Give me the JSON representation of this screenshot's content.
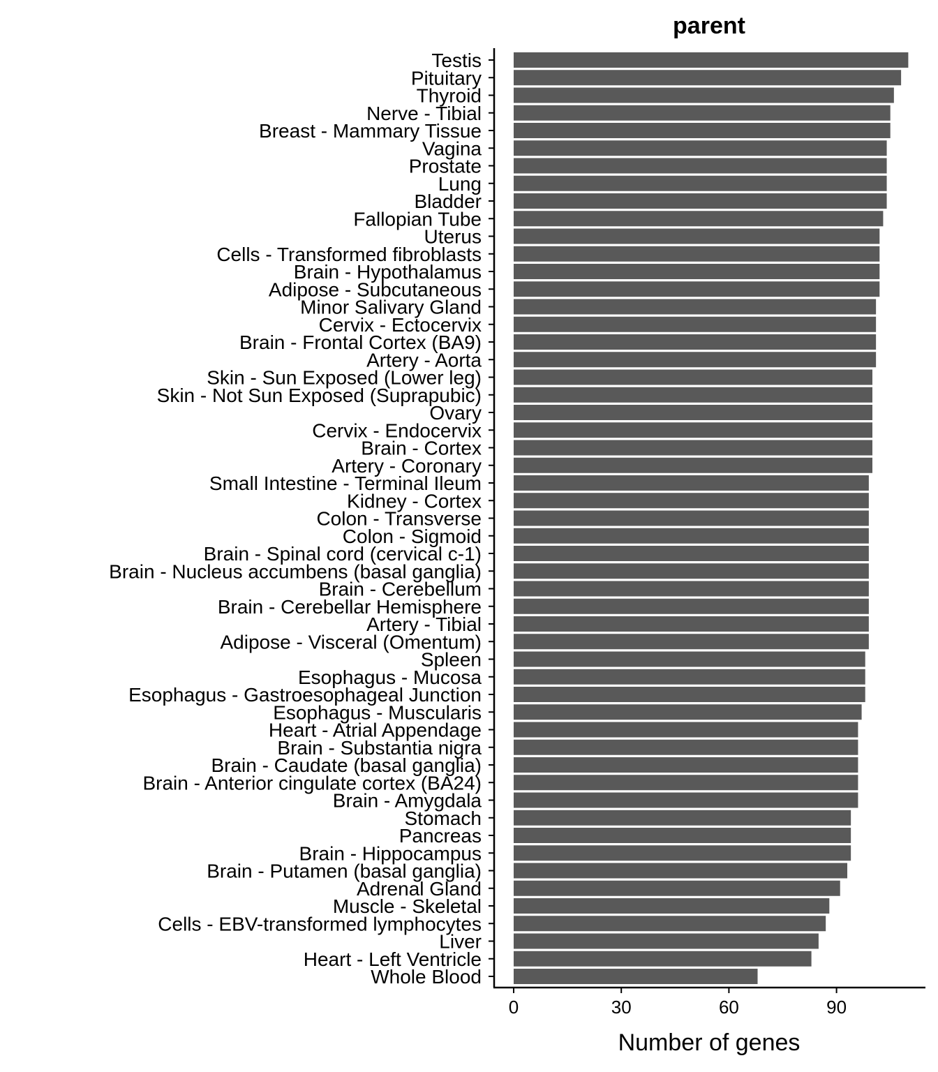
{
  "chart_data": {
    "type": "bar",
    "orientation": "horizontal",
    "title": "parent",
    "xlabel": "Number of genes",
    "ylabel": "",
    "xlim": [
      0,
      110
    ],
    "xticks": [
      0,
      30,
      60,
      90
    ],
    "grid": false,
    "bar_color": "#595959",
    "categories": [
      "Testis",
      "Pituitary",
      "Thyroid",
      "Nerve - Tibial",
      "Breast - Mammary Tissue",
      "Vagina",
      "Prostate",
      "Lung",
      "Bladder",
      "Fallopian Tube",
      "Uterus",
      "Cells - Transformed fibroblasts",
      "Brain - Hypothalamus",
      "Adipose - Subcutaneous",
      "Minor Salivary Gland",
      "Cervix - Ectocervix",
      "Brain - Frontal Cortex (BA9)",
      "Artery - Aorta",
      "Skin - Sun Exposed (Lower leg)",
      "Skin - Not Sun Exposed (Suprapubic)",
      "Ovary",
      "Cervix - Endocervix",
      "Brain - Cortex",
      "Artery - Coronary",
      "Small Intestine - Terminal Ileum",
      "Kidney - Cortex",
      "Colon - Transverse",
      "Colon - Sigmoid",
      "Brain - Spinal cord (cervical c-1)",
      "Brain - Nucleus accumbens (basal ganglia)",
      "Brain - Cerebellum",
      "Brain - Cerebellar Hemisphere",
      "Artery - Tibial",
      "Adipose - Visceral (Omentum)",
      "Spleen",
      "Esophagus - Mucosa",
      "Esophagus - Gastroesophageal Junction",
      "Esophagus - Muscularis",
      "Heart - Atrial Appendage",
      "Brain - Substantia nigra",
      "Brain - Caudate (basal ganglia)",
      "Brain - Anterior cingulate cortex (BA24)",
      "Brain - Amygdala",
      "Stomach",
      "Pancreas",
      "Brain - Hippocampus",
      "Brain - Putamen (basal ganglia)",
      "Adrenal Gland",
      "Muscle - Skeletal",
      "Cells - EBV-transformed lymphocytes",
      "Liver",
      "Heart - Left Ventricle",
      "Whole Blood"
    ],
    "values": [
      110,
      108,
      106,
      105,
      105,
      104,
      104,
      104,
      104,
      103,
      102,
      102,
      102,
      102,
      101,
      101,
      101,
      101,
      100,
      100,
      100,
      100,
      100,
      100,
      99,
      99,
      99,
      99,
      99,
      99,
      99,
      99,
      99,
      99,
      98,
      98,
      98,
      97,
      96,
      96,
      96,
      96,
      96,
      94,
      94,
      94,
      93,
      91,
      88,
      87,
      85,
      83,
      68
    ]
  }
}
